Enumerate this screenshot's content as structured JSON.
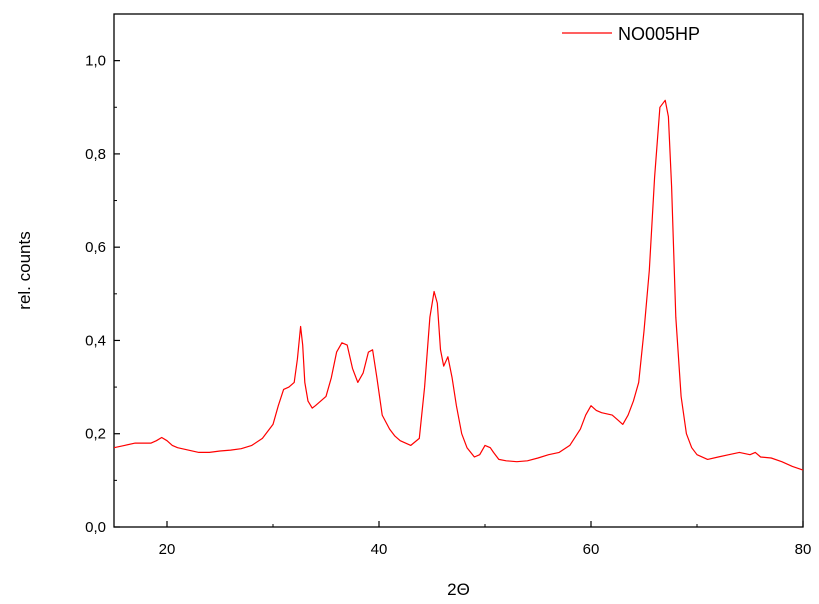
{
  "chart_data": {
    "type": "line",
    "xlabel": "2Θ",
    "ylabel": "rel. counts",
    "xlim": [
      15,
      80
    ],
    "ylim": [
      0,
      1.1
    ],
    "x_ticks": [
      20,
      40,
      60,
      80
    ],
    "x_tick_labels": [
      "20",
      "40",
      "60",
      "80"
    ],
    "y_ticks": [
      0,
      0.2,
      0.4,
      0.6,
      0.8,
      1.0
    ],
    "y_tick_labels": [
      "0,0",
      "0,2",
      "0,4",
      "0,6",
      "0,8",
      "1,0"
    ],
    "grid": false,
    "legend_position": "top-right",
    "series": [
      {
        "name": "NO005HP",
        "color": "#ff0000",
        "x": [
          15,
          16,
          17,
          18,
          18.5,
          19,
          19.5,
          20,
          20.5,
          21,
          22,
          23,
          24,
          25,
          26,
          27,
          28,
          29,
          30,
          30.5,
          31,
          31.5,
          32,
          32.3,
          32.6,
          32.8,
          33,
          33.3,
          33.7,
          34,
          34.5,
          35,
          35.5,
          36,
          36.5,
          37,
          37.5,
          38,
          38.5,
          39,
          39.4,
          39.8,
          40.3,
          41,
          41.5,
          42,
          43,
          43.8,
          44.3,
          44.8,
          45.2,
          45.5,
          45.8,
          46.1,
          46.5,
          46.9,
          47.3,
          47.8,
          48.3,
          49,
          49.5,
          50,
          50.5,
          50.8,
          51.3,
          52,
          53,
          54,
          55,
          56,
          57,
          58,
          59,
          59.5,
          60,
          60.5,
          61,
          62,
          62.5,
          63,
          63.5,
          64,
          64.5,
          65,
          65.5,
          66,
          66.5,
          67,
          67.3,
          67.6,
          68,
          68.5,
          69,
          69.5,
          70,
          71,
          72,
          73,
          74,
          75,
          75.5,
          76,
          77,
          78,
          79,
          80
        ],
        "values": [
          0.17,
          0.175,
          0.18,
          0.18,
          0.18,
          0.185,
          0.192,
          0.185,
          0.175,
          0.17,
          0.165,
          0.16,
          0.16,
          0.163,
          0.165,
          0.168,
          0.175,
          0.19,
          0.22,
          0.26,
          0.295,
          0.3,
          0.31,
          0.36,
          0.43,
          0.39,
          0.31,
          0.27,
          0.255,
          0.26,
          0.27,
          0.28,
          0.32,
          0.375,
          0.395,
          0.39,
          0.34,
          0.31,
          0.33,
          0.375,
          0.38,
          0.32,
          0.24,
          0.21,
          0.195,
          0.185,
          0.175,
          0.19,
          0.3,
          0.45,
          0.505,
          0.48,
          0.38,
          0.345,
          0.365,
          0.32,
          0.26,
          0.2,
          0.17,
          0.15,
          0.155,
          0.175,
          0.17,
          0.16,
          0.145,
          0.142,
          0.14,
          0.142,
          0.148,
          0.155,
          0.16,
          0.175,
          0.21,
          0.24,
          0.26,
          0.25,
          0.245,
          0.24,
          0.23,
          0.22,
          0.24,
          0.27,
          0.31,
          0.42,
          0.55,
          0.75,
          0.9,
          0.915,
          0.88,
          0.73,
          0.45,
          0.28,
          0.2,
          0.17,
          0.155,
          0.145,
          0.15,
          0.155,
          0.16,
          0.155,
          0.16,
          0.15,
          0.148,
          0.14,
          0.13,
          0.122
        ]
      }
    ]
  }
}
